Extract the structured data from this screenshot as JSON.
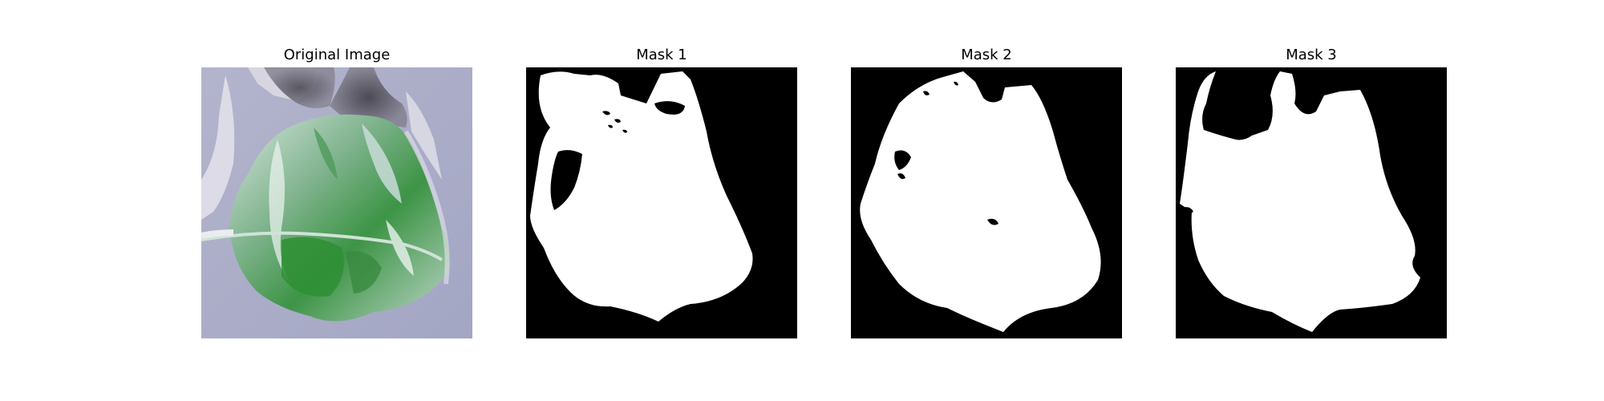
{
  "figure": {
    "panels": [
      {
        "id": "original",
        "title": "Original Image"
      },
      {
        "id": "mask1",
        "title": "Mask 1"
      },
      {
        "id": "mask2",
        "title": "Mask 2"
      },
      {
        "id": "mask3",
        "title": "Mask 3"
      }
    ]
  },
  "colors": {
    "mask_background": "#000000",
    "mask_foreground": "#ffffff",
    "photo_background": "#a9abc6",
    "leaf_dark": "#2f8a3a",
    "leaf_light": "#d9e9e2"
  }
}
